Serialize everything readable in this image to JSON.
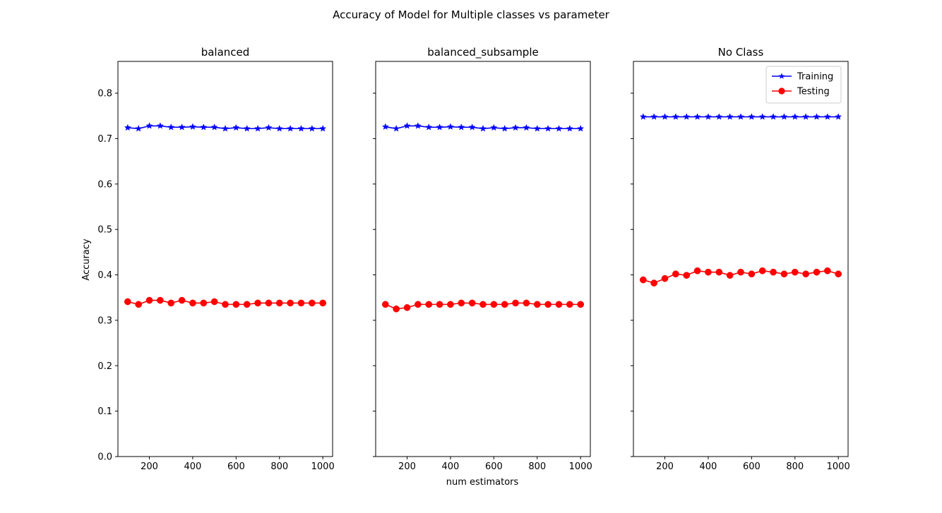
{
  "figure": {
    "title": "Accuracy of Model for Multiple classes vs parameter",
    "xlabel": "num estimators",
    "ylabel": "Accuracy"
  },
  "colors": {
    "training": "#0000ff",
    "testing": "#ff0000"
  },
  "chart_data": [
    {
      "type": "line",
      "title": "balanced",
      "x": [
        100,
        150,
        200,
        250,
        300,
        350,
        400,
        450,
        500,
        550,
        600,
        650,
        700,
        750,
        800,
        850,
        900,
        950,
        1000
      ],
      "xticks": [
        200,
        400,
        600,
        800,
        1000
      ],
      "yticks": [
        0.0,
        0.1,
        0.2,
        0.3,
        0.4,
        0.5,
        0.6,
        0.7,
        0.8
      ],
      "ylim": [
        0.0,
        0.87
      ],
      "xlim": [
        55,
        1045
      ],
      "series": [
        {
          "name": "Training",
          "marker": "star",
          "color": "#0000ff",
          "values": [
            0.724,
            0.722,
            0.728,
            0.728,
            0.725,
            0.725,
            0.726,
            0.725,
            0.725,
            0.722,
            0.724,
            0.722,
            0.722,
            0.724,
            0.722,
            0.722,
            0.722,
            0.722,
            0.722
          ]
        },
        {
          "name": "Testing",
          "marker": "circle",
          "color": "#ff0000",
          "values": [
            0.341,
            0.335,
            0.344,
            0.344,
            0.338,
            0.344,
            0.338,
            0.338,
            0.341,
            0.335,
            0.335,
            0.335,
            0.338,
            0.338,
            0.338,
            0.338,
            0.338,
            0.338,
            0.338
          ]
        }
      ]
    },
    {
      "type": "line",
      "title": "balanced_subsample",
      "x": [
        100,
        150,
        200,
        250,
        300,
        350,
        400,
        450,
        500,
        550,
        600,
        650,
        700,
        750,
        800,
        850,
        900,
        950,
        1000
      ],
      "xticks": [
        200,
        400,
        600,
        800,
        1000
      ],
      "yticks": [
        0.0,
        0.1,
        0.2,
        0.3,
        0.4,
        0.5,
        0.6,
        0.7,
        0.8
      ],
      "ylim": [
        0.0,
        0.87
      ],
      "xlim": [
        55,
        1045
      ],
      "series": [
        {
          "name": "Training",
          "marker": "star",
          "color": "#0000ff",
          "values": [
            0.726,
            0.722,
            0.728,
            0.728,
            0.725,
            0.725,
            0.726,
            0.725,
            0.725,
            0.722,
            0.724,
            0.722,
            0.724,
            0.724,
            0.722,
            0.722,
            0.722,
            0.722,
            0.722
          ]
        },
        {
          "name": "Testing",
          "marker": "circle",
          "color": "#ff0000",
          "values": [
            0.335,
            0.325,
            0.328,
            0.335,
            0.335,
            0.335,
            0.335,
            0.338,
            0.338,
            0.335,
            0.335,
            0.335,
            0.338,
            0.338,
            0.335,
            0.335,
            0.335,
            0.335,
            0.335
          ]
        }
      ]
    },
    {
      "type": "line",
      "title": "No Class",
      "legend": "top-right",
      "x": [
        100,
        150,
        200,
        250,
        300,
        350,
        400,
        450,
        500,
        550,
        600,
        650,
        700,
        750,
        800,
        850,
        900,
        950,
        1000
      ],
      "xticks": [
        200,
        400,
        600,
        800,
        1000
      ],
      "yticks": [
        0.0,
        0.1,
        0.2,
        0.3,
        0.4,
        0.5,
        0.6,
        0.7,
        0.8
      ],
      "ylim": [
        0.0,
        0.87
      ],
      "xlim": [
        55,
        1045
      ],
      "series": [
        {
          "name": "Training",
          "marker": "star",
          "color": "#0000ff",
          "values": [
            0.748,
            0.748,
            0.748,
            0.748,
            0.748,
            0.748,
            0.748,
            0.748,
            0.748,
            0.748,
            0.748,
            0.748,
            0.748,
            0.748,
            0.748,
            0.748,
            0.748,
            0.748,
            0.748
          ]
        },
        {
          "name": "Testing",
          "marker": "circle",
          "color": "#ff0000",
          "values": [
            0.389,
            0.382,
            0.392,
            0.402,
            0.399,
            0.409,
            0.406,
            0.406,
            0.399,
            0.406,
            0.402,
            0.409,
            0.406,
            0.402,
            0.406,
            0.402,
            0.406,
            0.409,
            0.402
          ]
        }
      ]
    }
  ]
}
